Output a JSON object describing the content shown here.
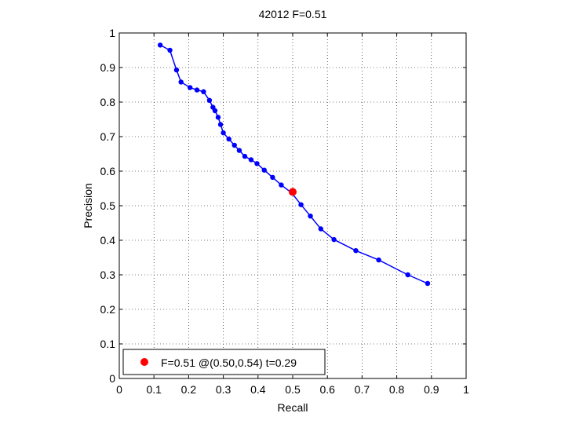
{
  "chart_data": {
    "type": "line",
    "title": "42012 F=0.51",
    "xlabel": "Recall",
    "ylabel": "Precision",
    "xlim": [
      0,
      1
    ],
    "ylim": [
      0,
      1
    ],
    "xticks": [
      "0",
      "0.1",
      "0.2",
      "0.3",
      "0.4",
      "0.5",
      "0.6",
      "0.7",
      "0.8",
      "0.9",
      "1"
    ],
    "yticks": [
      "0",
      "0.1",
      "0.2",
      "0.3",
      "0.4",
      "0.5",
      "0.6",
      "0.7",
      "0.8",
      "0.9",
      "1"
    ],
    "grid": true,
    "legend_position": "bottom-left",
    "series": [
      {
        "color": "#0000ff",
        "marker": "dot",
        "points": [
          [
            0.118,
            0.965
          ],
          [
            0.146,
            0.95
          ],
          [
            0.165,
            0.893
          ],
          [
            0.178,
            0.858
          ],
          [
            0.204,
            0.842
          ],
          [
            0.224,
            0.835
          ],
          [
            0.243,
            0.83
          ],
          [
            0.26,
            0.805
          ],
          [
            0.27,
            0.785
          ],
          [
            0.276,
            0.775
          ],
          [
            0.285,
            0.756
          ],
          [
            0.292,
            0.735
          ],
          [
            0.3,
            0.711
          ],
          [
            0.316,
            0.693
          ],
          [
            0.332,
            0.675
          ],
          [
            0.346,
            0.66
          ],
          [
            0.362,
            0.643
          ],
          [
            0.38,
            0.633
          ],
          [
            0.397,
            0.622
          ],
          [
            0.418,
            0.603
          ],
          [
            0.442,
            0.582
          ],
          [
            0.467,
            0.56
          ],
          [
            0.497,
            0.537
          ],
          [
            0.524,
            0.503
          ],
          [
            0.551,
            0.47
          ],
          [
            0.581,
            0.433
          ],
          [
            0.619,
            0.402
          ],
          [
            0.682,
            0.37
          ],
          [
            0.748,
            0.343
          ],
          [
            0.832,
            0.3
          ],
          [
            0.889,
            0.275
          ]
        ]
      }
    ],
    "highlight": {
      "color": "#ff0000",
      "x": 0.5,
      "y": 0.54,
      "label": "F=0.51 @(0.50,0.54) t=0.29"
    }
  }
}
